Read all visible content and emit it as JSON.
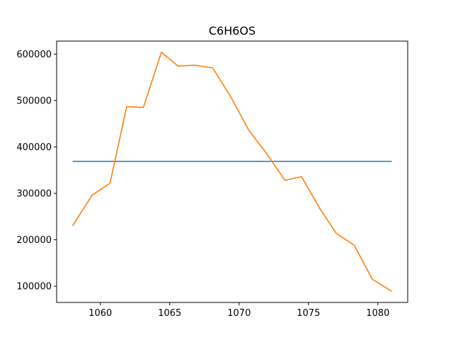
{
  "chart_data": {
    "type": "line",
    "title": "C6H6OS",
    "xlabel": "",
    "ylabel": "",
    "xlim": [
      1056.85,
      1082.15
    ],
    "ylim": [
      65000,
      628000
    ],
    "x_ticks": [
      1060,
      1065,
      1070,
      1075,
      1080
    ],
    "y_ticks": [
      100000,
      200000,
      300000,
      400000,
      500000,
      600000
    ],
    "x_tick_labels": [
      "1060",
      "1065",
      "1070",
      "1075",
      "1080"
    ],
    "y_tick_labels": [
      "100000",
      "200000",
      "300000",
      "400000",
      "500000",
      "600000"
    ],
    "grid": false,
    "legend": "none",
    "series": [
      {
        "color": "#1f77b4",
        "x": [
          1058.0,
          1081.0
        ],
        "y": [
          369000,
          369000
        ]
      },
      {
        "color": "#ff7f0e",
        "x": [
          1058.0,
          1059.4,
          1060.7,
          1061.9,
          1063.1,
          1064.4,
          1065.6,
          1066.8,
          1068.1,
          1069.4,
          1070.7,
          1072.0,
          1073.3,
          1074.5,
          1075.8,
          1077.0,
          1078.3,
          1079.6,
          1081.0
        ],
        "y": [
          230000,
          296000,
          322000,
          487000,
          485000,
          604000,
          574000,
          576000,
          570000,
          508000,
          436000,
          385000,
          328000,
          336000,
          268000,
          214000,
          188000,
          115000,
          89000
        ]
      }
    ]
  }
}
